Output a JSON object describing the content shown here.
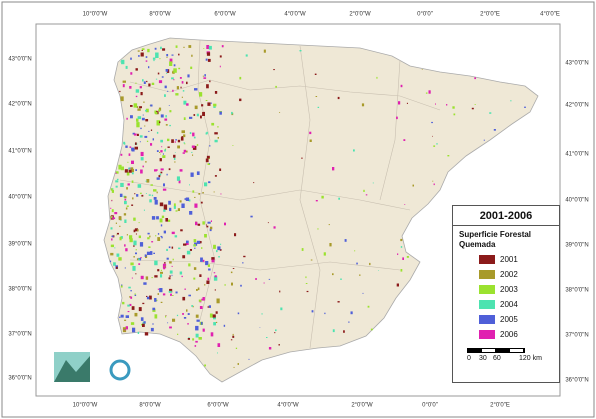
{
  "graticule": {
    "top": [
      "10°0'0\"W",
      "8°0'0\"W",
      "6°0'0\"W",
      "4°0'0\"W",
      "2°0'0\"W",
      "0°0'0\"",
      "2°0'0\"E",
      "4°0'0\"E"
    ],
    "bottom": [
      "10°0'0\"W",
      "8°0'0\"W",
      "6°0'0\"W",
      "4°0'0\"W",
      "2°0'0\"W",
      "0°0'0\"",
      "2°0'0\"E"
    ],
    "left": [
      "43°0'0\"N",
      "42°0'0\"N",
      "41°0'0\"N",
      "40°0'0\"N",
      "39°0'0\"N",
      "38°0'0\"N",
      "37°0'0\"N",
      "36°0'0\"N"
    ],
    "right": [
      "43°0'0\"N",
      "42°0'0\"N",
      "41°0'0\"N",
      "40°0'0\"N",
      "39°0'0\"N",
      "38°0'0\"N",
      "37°0'0\"N",
      "36°0'0\"N"
    ]
  },
  "legend": {
    "title": "2001-2006",
    "subtitle": "Superficie Forestal Quemada",
    "items": [
      {
        "label": "2001",
        "color": "#8b1a1a"
      },
      {
        "label": "2002",
        "color": "#a89a2a"
      },
      {
        "label": "2003",
        "color": "#9be22f"
      },
      {
        "label": "2004",
        "color": "#4de3b0"
      },
      {
        "label": "2005",
        "color": "#4f5fd8"
      },
      {
        "label": "2006",
        "color": "#e020b0"
      }
    ]
  },
  "scale_bar": {
    "labels": [
      "0",
      "30",
      "60",
      "120 km"
    ]
  }
}
